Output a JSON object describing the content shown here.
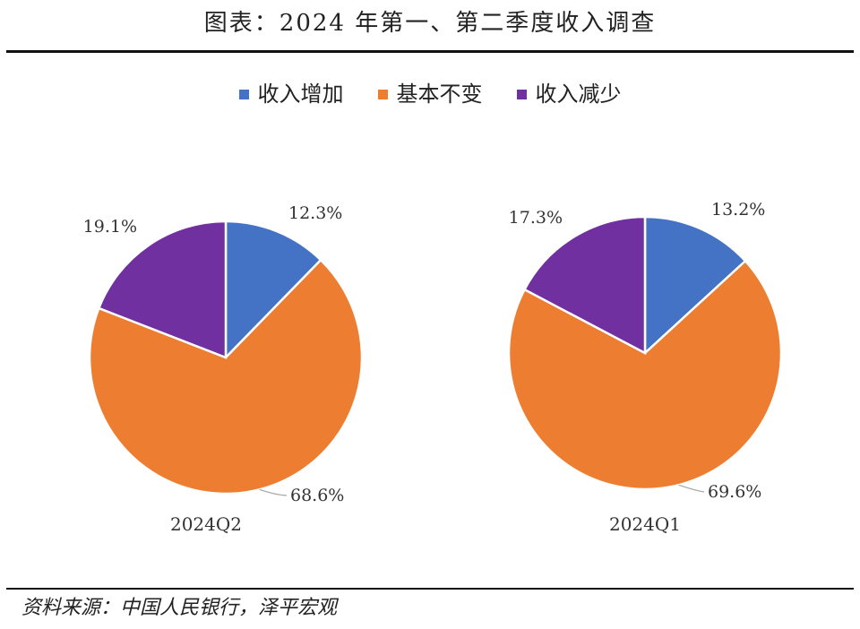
{
  "title": "图表：2024 年第一、第二季度收入调查",
  "source": "资料来源：中国人民银行，泽平宏观",
  "colors": {
    "increase": "#4472c4",
    "unchanged": "#ed7d31",
    "decrease": "#7030a0"
  },
  "chart_data": [
    {
      "type": "pie",
      "category": "2024Q2",
      "legend_placement": "top",
      "series": [
        {
          "name": "收入增加",
          "value": 12.3,
          "label": "12.3%"
        },
        {
          "name": "基本不变",
          "value": 68.6,
          "label": "68.6%"
        },
        {
          "name": "收入减少",
          "value": 19.1,
          "label": "19.1%"
        }
      ]
    },
    {
      "type": "pie",
      "category": "2024Q1",
      "legend_placement": "top",
      "series": [
        {
          "name": "收入增加",
          "value": 13.2,
          "label": "13.2%"
        },
        {
          "name": "基本不变",
          "value": 69.6,
          "label": "69.6%"
        },
        {
          "name": "收入减少",
          "value": 17.3,
          "label": "17.3%"
        }
      ]
    }
  ]
}
